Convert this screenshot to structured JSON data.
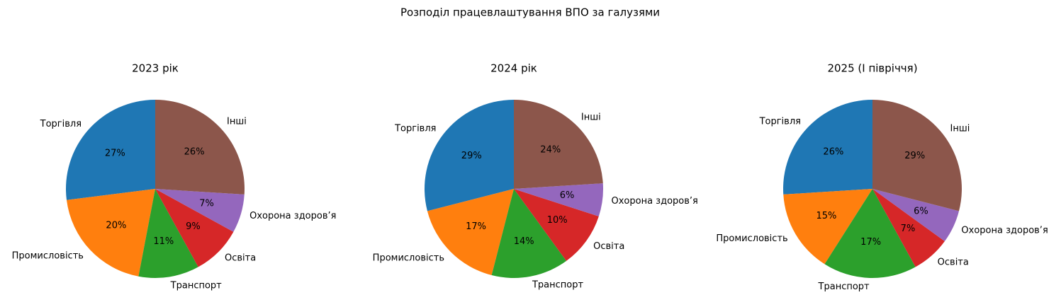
{
  "title": "Розподіл працевлаштування ВПО за галузями",
  "chart_data": [
    {
      "type": "pie",
      "title": "2023 рік",
      "categories": [
        "Торгівля",
        "Промисловість",
        "Транспорт",
        "Освіта",
        "Охорона здоров’я",
        "Інші"
      ],
      "values": [
        27,
        20,
        11,
        9,
        7,
        26
      ],
      "value_labels": [
        "27%",
        "20%",
        "11%",
        "9%",
        "7%",
        "26%"
      ],
      "colors": [
        "#1f77b4",
        "#ff7f0e",
        "#2ca02c",
        "#d62728",
        "#9467bd",
        "#8c564b"
      ]
    },
    {
      "type": "pie",
      "title": "2024 рік",
      "categories": [
        "Торгівля",
        "Промисловість",
        "Транспорт",
        "Освіта",
        "Охорона здоров’я",
        "Інші"
      ],
      "values": [
        29,
        17,
        14,
        10,
        6,
        24
      ],
      "value_labels": [
        "29%",
        "17%",
        "14%",
        "10%",
        "6%",
        "24%"
      ],
      "colors": [
        "#1f77b4",
        "#ff7f0e",
        "#2ca02c",
        "#d62728",
        "#9467bd",
        "#8c564b"
      ]
    },
    {
      "type": "pie",
      "title": "2025 (I півріччя)",
      "categories": [
        "Торгівля",
        "Промисловість",
        "Транспорт",
        "Освіта",
        "Охорона здоров’я",
        "Інші"
      ],
      "values": [
        26,
        15,
        17,
        7,
        6,
        29
      ],
      "value_labels": [
        "26%",
        "15%",
        "17%",
        "7%",
        "6%",
        "29%"
      ],
      "colors": [
        "#1f77b4",
        "#ff7f0e",
        "#2ca02c",
        "#d62728",
        "#9467bd",
        "#8c564b"
      ]
    }
  ]
}
